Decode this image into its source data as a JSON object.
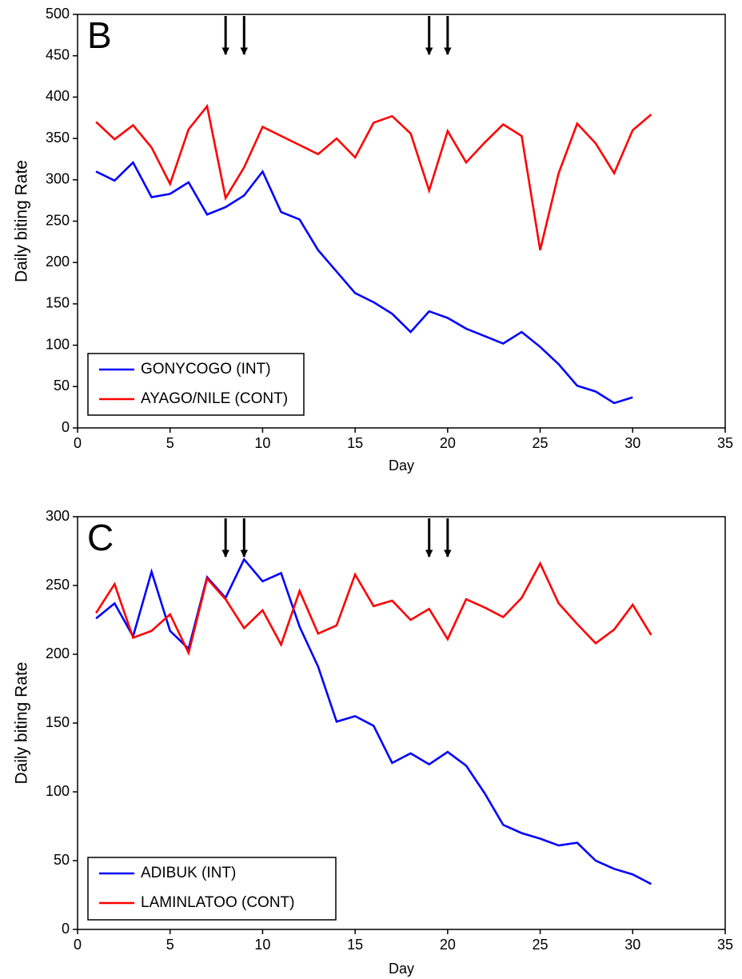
{
  "chart_data": [
    {
      "type": "line",
      "panel_label": "B",
      "xlabel": "Day",
      "ylabel": "Daily biting Rate",
      "x": [
        1,
        2,
        3,
        4,
        5,
        6,
        7,
        8,
        9,
        10,
        11,
        12,
        13,
        14,
        15,
        16,
        17,
        18,
        19,
        20,
        21,
        22,
        23,
        24,
        25,
        26,
        27,
        28,
        29,
        30,
        31
      ],
      "series": [
        {
          "name": "GONYCOGO (INT)",
          "color": "#0000ff",
          "values": [
            310,
            299,
            321,
            279,
            283,
            297,
            258,
            267,
            281,
            310,
            261,
            252,
            215,
            189,
            163,
            152,
            138,
            116,
            141,
            133,
            120,
            111,
            102,
            116,
            98,
            77,
            51,
            44,
            30,
            37,
            null
          ]
        },
        {
          "name": "AYAGO/NILE (CONT)",
          "color": "#ff0000",
          "values": [
            370,
            349,
            366,
            339,
            295,
            361,
            389,
            278,
            315,
            364,
            353,
            342,
            331,
            350,
            327,
            369,
            377,
            356,
            287,
            359,
            321,
            345,
            367,
            353,
            215,
            308,
            368,
            344,
            308,
            360,
            379
          ]
        }
      ],
      "arrows": [
        8,
        9,
        19,
        20
      ],
      "xlim": [
        0,
        35
      ],
      "xticks": [
        0,
        5,
        10,
        15,
        20,
        25,
        30,
        35
      ],
      "ylim": [
        0,
        500
      ],
      "yticks": [
        0,
        50,
        100,
        150,
        200,
        250,
        300,
        350,
        400,
        450,
        500
      ],
      "legend": "lower left"
    },
    {
      "type": "line",
      "panel_label": "C",
      "xlabel": "Day",
      "ylabel": "Daily biting Rate",
      "x": [
        1,
        2,
        3,
        4,
        5,
        6,
        7,
        8,
        9,
        10,
        11,
        12,
        13,
        14,
        15,
        16,
        17,
        18,
        19,
        20,
        21,
        22,
        23,
        24,
        25,
        26,
        27,
        28,
        29,
        30,
        31
      ],
      "series": [
        {
          "name": "ADIBUK (INT)",
          "color": "#0000ff",
          "values": [
            226,
            237,
            213,
            260,
            217,
            204,
            256,
            241,
            269,
            253,
            259,
            220,
            191,
            151,
            155,
            148,
            121,
            128,
            120,
            129,
            119,
            99,
            76,
            70,
            66,
            61,
            63,
            50,
            44,
            40,
            33
          ]
        },
        {
          "name": "LAMINLATOO (CONT)",
          "color": "#ff0000",
          "values": [
            230,
            251,
            212,
            217,
            229,
            201,
            255,
            240,
            219,
            232,
            207,
            246,
            215,
            221,
            258,
            235,
            239,
            225,
            233,
            211,
            240,
            234,
            227,
            241,
            266,
            237,
            222,
            208,
            218,
            236,
            214
          ]
        }
      ],
      "arrows": [
        8,
        9,
        19,
        20
      ],
      "xlim": [
        0,
        35
      ],
      "xticks": [
        0,
        5,
        10,
        15,
        20,
        25,
        30,
        35
      ],
      "ylim": [
        0,
        300
      ],
      "yticks": [
        0,
        50,
        100,
        150,
        200,
        250,
        300
      ],
      "legend": "lower left"
    }
  ]
}
